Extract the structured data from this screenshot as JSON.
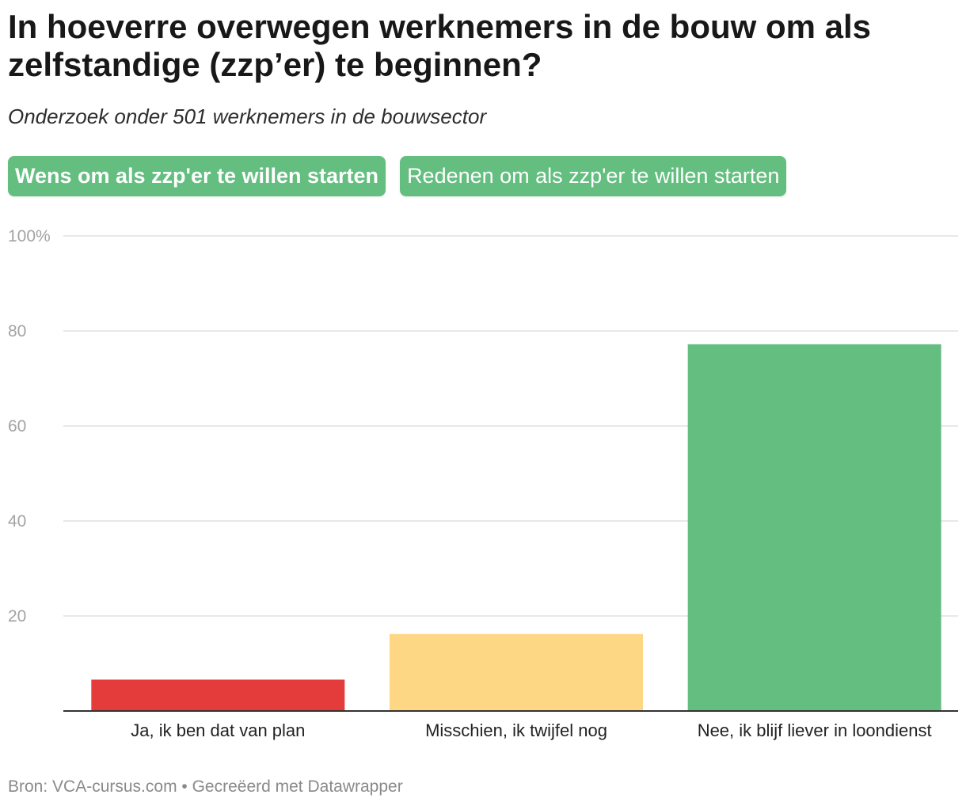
{
  "header": {
    "title": "In hoeverre overwegen werknemers in de bouw om als zelfstandige (zzp’er) te beginnen?",
    "subtitle": "Onderzoek onder 501 werknemers in de bouwsector"
  },
  "tabs": [
    {
      "label": "Wens om als zzp'er te willen starten",
      "active": true
    },
    {
      "label": "Redenen om als zzp'er te willen starten",
      "active": false
    }
  ],
  "footer": {
    "source": "Bron: VCA-cursus.com • Gecreëerd met Datawrapper"
  },
  "colors": {
    "tab_bg": "#63be7f",
    "gridline": "#e0e0e0",
    "axis": "#333333"
  },
  "chart_data": {
    "type": "bar",
    "categories": [
      "Ja, ik ben dat van plan",
      "Misschien, ik twijfel nog",
      "Nee, ik blijf liever in loondienst"
    ],
    "values": [
      6.6,
      16.2,
      77.2
    ],
    "bar_colors": [
      "#e43b3b",
      "#fdd783",
      "#63be7f"
    ],
    "ylim": [
      0,
      100
    ],
    "yticks": [
      20,
      40,
      60,
      80,
      100
    ],
    "ytick_labels": [
      "20",
      "40",
      "60",
      "80",
      "100%"
    ],
    "grid": true,
    "title": "",
    "xlabel": "",
    "ylabel": ""
  }
}
